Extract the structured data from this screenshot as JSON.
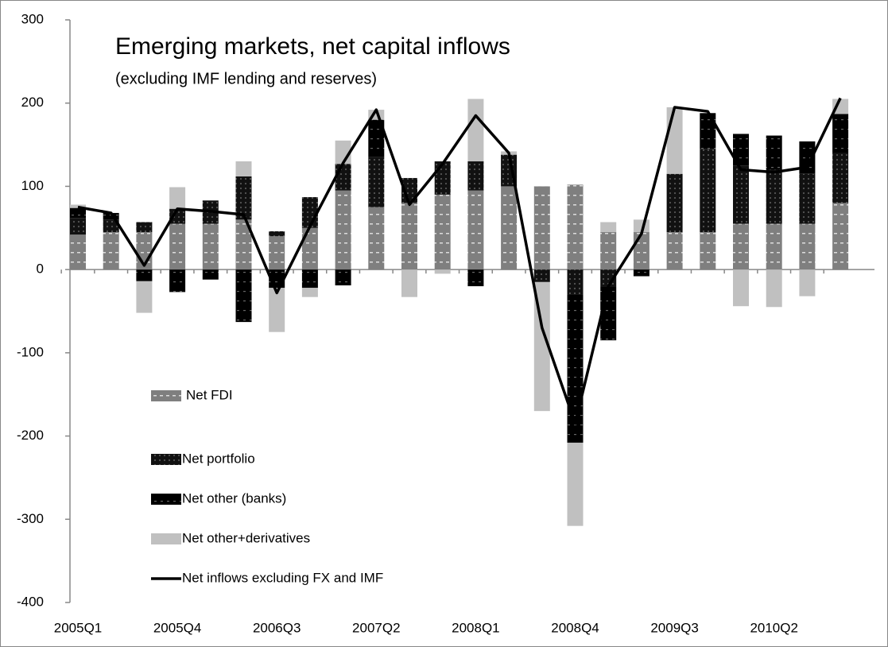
{
  "chart_data": {
    "type": "bar",
    "title": "Emerging markets, net capital inflows",
    "subtitle": "(excluding IMF lending and reserves)",
    "categories": [
      "2005Q1",
      null,
      null,
      "2005Q4",
      null,
      null,
      "2006Q3",
      null,
      null,
      "2007Q2",
      null,
      null,
      "2008Q1",
      null,
      null,
      "2008Q4",
      null,
      null,
      "2009Q3",
      null,
      null,
      "2010Q2",
      null,
      null
    ],
    "series": [
      {
        "name": "Net FDI",
        "type": "bar",
        "color": "#7f7f7f",
        "values": [
          42,
          45,
          45,
          55,
          55,
          60,
          40,
          50,
          95,
          75,
          80,
          90,
          95,
          100,
          100,
          102,
          45,
          45,
          45,
          45,
          55,
          55,
          55,
          80
        ]
      },
      {
        "name": "Net portfolio",
        "type": "bar",
        "color": "#111111",
        "values": [
          20,
          15,
          12,
          18,
          28,
          52,
          6,
          37,
          32,
          60,
          30,
          40,
          35,
          38,
          -15,
          -30,
          -20,
          0,
          70,
          100,
          70,
          65,
          60,
          60
        ]
      },
      {
        "name": "Net other (banks)",
        "type": "bar",
        "color": "#000000",
        "values": [
          12,
          8,
          -14,
          -27,
          -12,
          -63,
          -22,
          -22,
          -19,
          45,
          0,
          0,
          -20,
          0,
          0,
          -178,
          -65,
          -8,
          0,
          43,
          38,
          41,
          39,
          47
        ]
      },
      {
        "name": "Net other+derivatives",
        "type": "bar",
        "color": "#c0c0c0",
        "values": [
          4,
          0,
          -38,
          26,
          0,
          18,
          -53,
          -11,
          28,
          12,
          -33,
          -5,
          75,
          4,
          -155,
          -100,
          12,
          15,
          80,
          0,
          -44,
          -45,
          -32,
          18
        ]
      },
      {
        "name": "Net inflows excluding FX and IMF",
        "type": "line",
        "color": "#000000",
        "values": [
          75,
          68,
          5,
          73,
          70,
          66,
          -28,
          52,
          128,
          192,
          78,
          127,
          185,
          140,
          -70,
          -185,
          -20,
          43,
          195,
          190,
          120,
          117,
          123,
          206
        ]
      }
    ],
    "ylim": [
      -400,
      300
    ],
    "yticks": [
      -400,
      -300,
      -200,
      -100,
      0,
      100,
      200,
      300
    ]
  }
}
